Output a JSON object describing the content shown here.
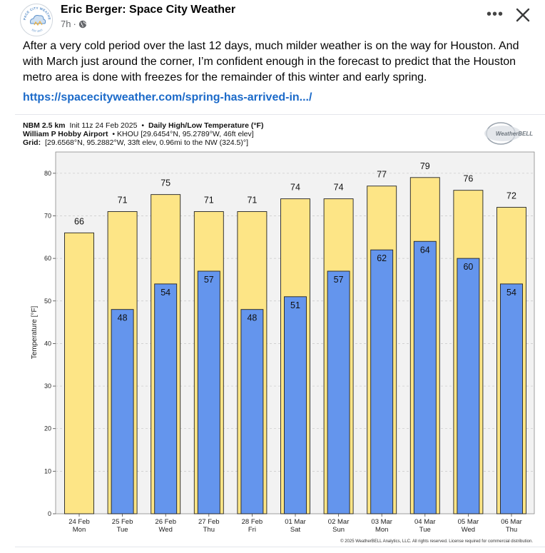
{
  "post": {
    "author": "Eric Berger: Space City Weather",
    "time": "7h",
    "dot": "·",
    "text": "After a very cold period over the last 12 days, much milder weather is on the way for Houston. And with March just around the corner, I’m confident enough in the forecast to predict that the Houston metro area is done with freezes for the remainder of this winter and early spring.",
    "link": "https://spacecityweather.com/spring-has-arrived-in.../",
    "more_label": "•••",
    "avatar_text_top": "SPACE CITY WEATHER",
    "avatar_text_bottom": "EST. 2015"
  },
  "icons": {
    "globe": "globe-icon",
    "more": "more-options-icon",
    "close": "close-icon",
    "logo": "space-city-weather-logo"
  },
  "colors": {
    "high_bar": "#fde586",
    "low_bar": "#6495ed",
    "plot_bg": "#f2f2f2",
    "link": "#1b6ac9"
  },
  "chart_data": {
    "type": "bar",
    "header_line1_bold": "NBM 2.5 km",
    "header_line1_init": "Init 11z 24 Feb 2025",
    "header_line1_sep": "•",
    "header_line1_title": "Daily High/Low Temperature (°F)",
    "header_line2_bold": "William P Hobby Airport",
    "header_line2_rest": "• KHOU [29.6454°N, 95.2789°W, 46ft elev]",
    "header_line3_bold": "Grid:",
    "header_line3_rest": "[29.6568°N, 95.2882°W, 33ft elev, 0.96mi to the NW (324.5)°]",
    "brand": "WeatherBELL",
    "ylabel": "Temperature [°F]",
    "ylim": [
      0,
      85
    ],
    "yticks": [
      0,
      10,
      20,
      30,
      40,
      50,
      60,
      70,
      80
    ],
    "categories": [
      {
        "date": "24 Feb",
        "day": "Mon"
      },
      {
        "date": "25 Feb",
        "day": "Tue"
      },
      {
        "date": "26 Feb",
        "day": "Wed"
      },
      {
        "date": "27 Feb",
        "day": "Thu"
      },
      {
        "date": "28 Feb",
        "day": "Fri"
      },
      {
        "date": "01 Mar",
        "day": "Sat"
      },
      {
        "date": "02 Mar",
        "day": "Sun"
      },
      {
        "date": "03 Mar",
        "day": "Mon"
      },
      {
        "date": "04 Mar",
        "day": "Tue"
      },
      {
        "date": "05 Mar",
        "day": "Wed"
      },
      {
        "date": "06 Mar",
        "day": "Thu"
      }
    ],
    "series": [
      {
        "name": "High",
        "values": [
          66,
          71,
          75,
          71,
          71,
          74,
          74,
          77,
          79,
          76,
          72
        ],
        "labels": [
          "66",
          "71",
          "75",
          "71",
          "71",
          "74",
          "74",
          "77",
          "79",
          "76",
          "72"
        ]
      },
      {
        "name": "Low",
        "values": [
          null,
          48,
          54,
          57,
          48,
          51,
          57,
          62,
          64,
          60,
          54
        ],
        "labels": [
          null,
          "48",
          "54",
          "57",
          "48",
          "51",
          "57",
          "62",
          "64",
          "60",
          "54"
        ]
      }
    ],
    "copyright": "© 2025 WeatherBELL Analytics, LLC. All rights reserved. License required for commercial distribution."
  }
}
